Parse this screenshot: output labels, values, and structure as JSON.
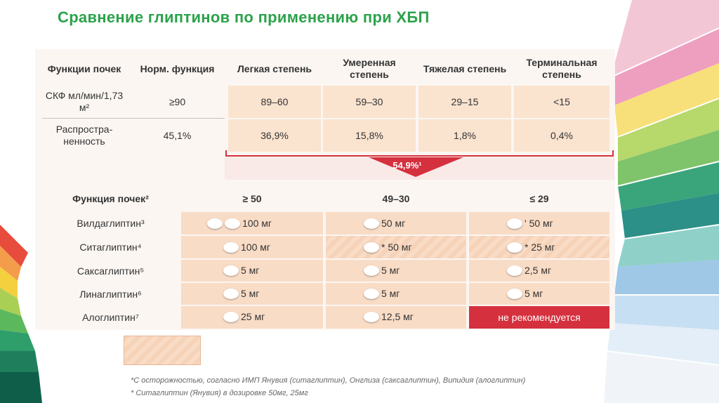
{
  "title": "Сравнение глиптинов по применению при ХБП",
  "top_table": {
    "headers": [
      "Функции почек",
      "Норм. функция",
      "Легкая степень",
      "Умеренная степень",
      "Тяжелая степень",
      "Терминальная степень"
    ],
    "rows": [
      {
        "label": "СКФ мл/мин/1,73 м²",
        "values": [
          "≥90",
          "89–60",
          "59–30",
          "29–15",
          "<15"
        ]
      },
      {
        "label": "Распростра-ненность",
        "values": [
          "45,1%",
          "36,9%",
          "15,8%",
          "1,8%",
          "0,4%"
        ]
      }
    ],
    "summary": "54,9%¹"
  },
  "bottom_table": {
    "headers": [
      "Функция почек²",
      "≥ 50",
      "49–30",
      "≤ 29"
    ],
    "rows": [
      {
        "drug": "Вилдаглиптин³",
        "doses": [
          "100 мг",
          "50 мг",
          "' 50 мг"
        ]
      },
      {
        "drug": "Ситаглиптин⁴",
        "doses": [
          "100 мг",
          "* 50 мг",
          "* 25 мг"
        ]
      },
      {
        "drug": "Саксаглиптин⁵",
        "doses": [
          "5 мг",
          "5 мг",
          "2,5 мг"
        ]
      },
      {
        "drug": "Линаглиптин⁶",
        "doses": [
          "5 мг",
          "5 мг",
          "5 мг"
        ]
      },
      {
        "drug": "Алоглиптин⁷",
        "doses": [
          "25 мг",
          "12,5 мг",
          "не рекомендуется"
        ]
      }
    ]
  },
  "footnotes": [
    "*С осторожностью, согласно ИМП Янувия (ситаглиптин), Онглиза (саксаглиптин), Випидия (алоглиптин)",
    "* Ситаглиптин (Янувия) в дозировке 50мг, 25мг"
  ],
  "colors": {
    "title": "#2ca24b",
    "peach": "#fae3cf",
    "red": "#d5303e"
  }
}
